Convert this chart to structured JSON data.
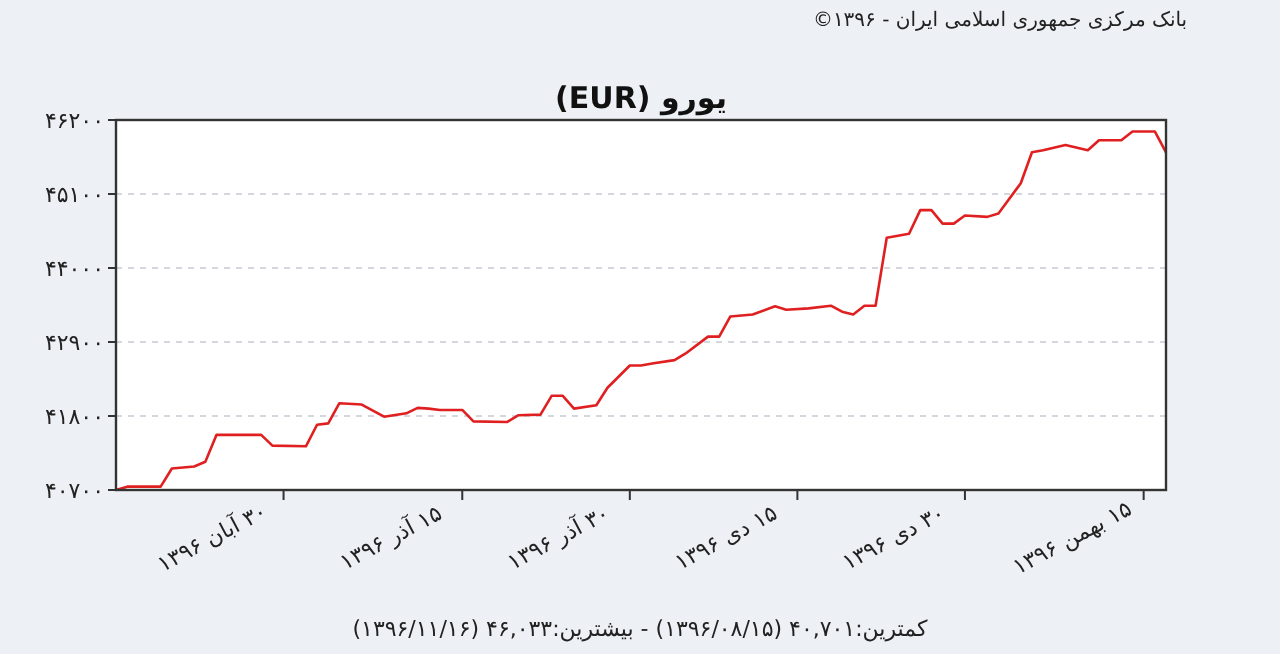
{
  "chart_data": {
    "type": "line",
    "title": "یورو (EUR)",
    "annotations": [
      "بانک مرکزی جمهوری اسلامی ایران - ۱۳۹۶©",
      "کمترین:۴۰,۷۰۱ (۱۳۹۶/۰۸/۱۵) - بیشترین:۴۶,۰۳۳ (۱۳۹۶/۱۱/۱۶)"
    ],
    "series": [
      {
        "color": "#e02020",
        "x": [
          "--08-15",
          "--08-16",
          "--08-19",
          "--08-20",
          "--08-22",
          "--08-23",
          "--08-24",
          "--08-28",
          "--08-29",
          "--09-01",
          "--09-02",
          "--09-03",
          "--09-04",
          "--09-06",
          "--09-08",
          "--09-10",
          "--09-11",
          "--09-12",
          "--09-13",
          "--09-15",
          "--09-16",
          "--09-19",
          "--09-20",
          "--09-22",
          "--09-23",
          "--09-24",
          "--09-25",
          "--09-27",
          "--09-28",
          "--09-30",
          "--10-01",
          "--10-02",
          "--10-04",
          "--10-05",
          "--10-07",
          "--10-08",
          "--10-09",
          "--10-11",
          "--10-13",
          "--10-14",
          "--10-16",
          "--10-18",
          "--10-19",
          "--10-20",
          "--10-21",
          "--10-22",
          "--10-23",
          "--10-25",
          "--10-26",
          "--10-27",
          "--10-28",
          "--10-29",
          "--10-30",
          "--11-01",
          "--11-02",
          "--11-04",
          "--11-05",
          "--11-06",
          "--11-08",
          "--11-10",
          "--11-11",
          "--11-13",
          "--11-14",
          "--11-16",
          "--11-17"
        ],
        "values": [
          40700,
          40750,
          40750,
          41020,
          41050,
          41120,
          41520,
          41520,
          41360,
          41350,
          41670,
          41690,
          41990,
          41970,
          41790,
          41840,
          41920,
          41910,
          41890,
          41890,
          41720,
          41710,
          41810,
          41820,
          42100,
          42100,
          41910,
          41960,
          42220,
          42550,
          42550,
          42580,
          42630,
          42730,
          42980,
          42980,
          43280,
          43310,
          43430,
          43380,
          43400,
          43440,
          43350,
          43310,
          43440,
          43440,
          44450,
          44510,
          44860,
          44860,
          44660,
          44660,
          44780,
          44760,
          44810,
          45260,
          45720,
          45750,
          45830,
          45750,
          45900,
          45900,
          46030,
          46030,
          45720
        ]
      }
    ],
    "xlim": [
      "--08-15",
      "--11-17"
    ],
    "xticks": [
      {
        "value": "--08-30",
        "label": "۳۰ آبان ۱۳۹۶"
      },
      {
        "value": "--09-15",
        "label": "۱۵ آذر ۱۳۹۶"
      },
      {
        "value": "--09-30",
        "label": "۳۰ آذر ۱۳۹۶"
      },
      {
        "value": "--10-15",
        "label": "۱۵ دی ۱۳۹۶"
      },
      {
        "value": "--10-30",
        "label": "۳۰ دی ۱۳۹۶"
      },
      {
        "value": "--11-15",
        "label": "۱۵ بهمن ۱۳۹۶"
      }
    ],
    "ylim": [
      40700,
      46200
    ],
    "yticks": [
      {
        "value": 40700,
        "label": "۴۰۷۰۰"
      },
      {
        "value": 41800,
        "label": "۴۱۸۰۰"
      },
      {
        "value": 42900,
        "label": "۴۲۹۰۰"
      },
      {
        "value": 44000,
        "label": "۴۴۰۰۰"
      },
      {
        "value": 45100,
        "label": "۴۵۱۰۰"
      },
      {
        "value": 46200,
        "label": "۴۶۲۰۰"
      }
    ],
    "grid": "y",
    "marker": "none",
    "line_style": "solid"
  }
}
